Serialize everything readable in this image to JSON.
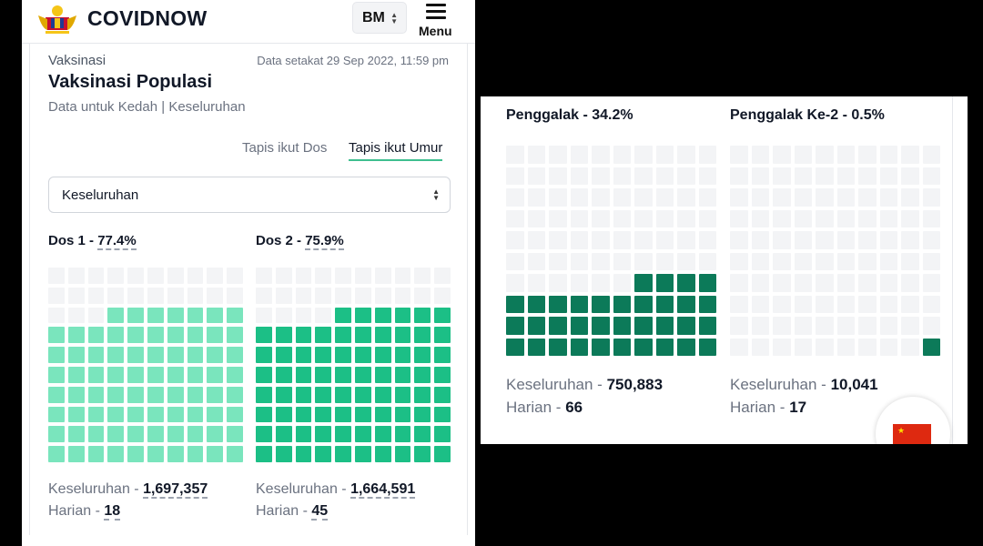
{
  "header": {
    "brand": "COVIDNOW",
    "lang": "BM",
    "menu_label": "Menu"
  },
  "section": {
    "label": "Vaksinasi",
    "date": "Data setakat 29 Sep 2022, 11:59 pm",
    "title": "Vaksinasi Populasi",
    "subtitle": "Data untuk Kedah | Keseluruhan"
  },
  "tabs": {
    "dos": "Tapis ikut Dos",
    "umur": "Tapis ikut Umur"
  },
  "filter": {
    "selected": "Keseluruhan"
  },
  "colors": {
    "empty": "#f3f4f6",
    "dose1": "#7ae5bd",
    "dose2": "#1cbf86",
    "booster": "#0c7a59"
  },
  "doses": [
    {
      "label": "Dos 1 - ",
      "pct_text": "77.4%",
      "filled_fraction": 0.774,
      "total_label": "Keseluruhan - ",
      "total": "1,697,357",
      "daily_label": "Harian - ",
      "daily": "18"
    },
    {
      "label": "Dos 2 - ",
      "pct_text": "75.9%",
      "filled_fraction": 0.759,
      "total_label": "Keseluruhan - ",
      "total": "1,664,591",
      "daily_label": "Harian - ",
      "daily": "45"
    }
  ],
  "boosters": [
    {
      "title": "Penggalak - 34.2%",
      "filled_fraction": 0.342,
      "total_label": "Keseluruhan - ",
      "total": "750,883",
      "daily_label": "Harian - ",
      "daily": "66"
    },
    {
      "title": "Penggalak Ke-2 - 0.5%",
      "filled_fraction": 0.005,
      "total_label": "Keseluruhan - ",
      "total": "10,041",
      "daily_label": "Harian - ",
      "daily": "17"
    }
  ]
}
